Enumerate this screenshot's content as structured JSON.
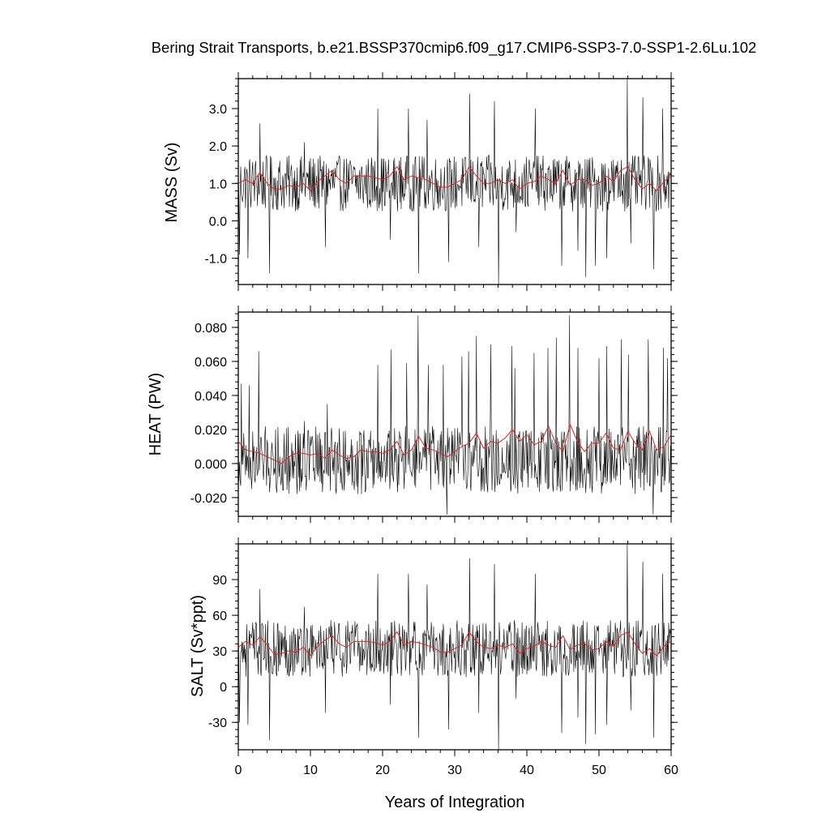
{
  "title": "Bering Strait Transports, b.e21.BSSP370cmip6.f09_g17.CMIP6-SSP3-7.0-SSP1-2.6Lu.102",
  "colors": {
    "monthly": "#000000",
    "annual": "#e8211c",
    "frame": "#000000"
  },
  "chart_data": [
    {
      "type": "line",
      "panel": "mass",
      "ylabel": "MASS (Sv)",
      "xlabel": "",
      "xlim": [
        0,
        60
      ],
      "ylim": [
        -1.7,
        3.8
      ],
      "yticks": [
        -1.0,
        0.0,
        1.0,
        2.0,
        3.0
      ],
      "ytick_labels": [
        "-1.0",
        "0.0",
        "1.0",
        "2.0",
        "3.0"
      ],
      "series": [
        {
          "values": [
            1.0,
            1.1,
            1.0,
            1.3,
            1.0,
            0.85,
            0.85,
            0.95,
            0.9,
            1.0,
            0.8,
            1.05,
            1.2,
            1.35,
            1.1,
            1.0,
            1.2,
            1.2,
            1.2,
            1.15,
            1.1,
            1.2,
            1.45,
            1.1,
            1.2,
            1.15,
            1.1,
            1.0,
            0.9,
            0.9,
            1.0,
            1.1,
            1.45,
            1.2,
            1.0,
            1.0,
            1.1,
            1.0,
            1.1,
            0.85,
            1.0,
            1.05,
            1.2,
            1.1,
            1.0,
            1.35,
            0.95,
            1.1,
            1.1,
            0.95,
            1.0,
            1.2,
            1.05,
            1.35,
            1.45,
            1.1,
            0.85,
            1.0,
            0.8,
            1.05,
            1.2
          ]
        },
        {
          "spikes": [
            [
              0.2,
              -0.9
            ],
            [
              1.3,
              -1.0
            ],
            [
              3.0,
              2.6
            ],
            [
              4.3,
              -1.4
            ],
            [
              9.2,
              2.1
            ],
            [
              12.1,
              -0.7
            ],
            [
              19.3,
              3.0
            ],
            [
              21.1,
              -0.5
            ],
            [
              23.6,
              3.0
            ],
            [
              25.0,
              -1.4
            ],
            [
              26.2,
              2.7
            ],
            [
              29.2,
              -1.1
            ],
            [
              32.1,
              3.4
            ],
            [
              33.3,
              -0.7
            ],
            [
              35.5,
              3.2
            ],
            [
              36.1,
              -1.8
            ],
            [
              38.5,
              -0.3
            ],
            [
              41.2,
              3.0
            ],
            [
              44.8,
              -1.2
            ],
            [
              47.1,
              -0.8
            ],
            [
              48.2,
              -1.5
            ],
            [
              49.5,
              -1.2
            ],
            [
              51.1,
              -1.0
            ],
            [
              53.9,
              3.8
            ],
            [
              54.4,
              -0.6
            ],
            [
              56.1,
              3.3
            ],
            [
              57.6,
              -1.3
            ],
            [
              58.8,
              3.0
            ]
          ],
          "baseline": 1.0,
          "amplitude": 0.75
        }
      ]
    },
    {
      "type": "line",
      "panel": "heat",
      "ylabel": "HEAT (PW)",
      "xlabel": "",
      "xlim": [
        0,
        60
      ],
      "ylim": [
        -0.031,
        0.089
      ],
      "yticks": [
        -0.02,
        0.0,
        0.02,
        0.04,
        0.06,
        0.08
      ],
      "ytick_labels": [
        "-0.020",
        "0.000",
        "0.020",
        "0.040",
        "0.060",
        "0.080"
      ],
      "series": [
        {
          "values": [
            0.013,
            0.008,
            0.007,
            0.006,
            0.004,
            0.002,
            0.0,
            0.004,
            0.006,
            0.006,
            0.005,
            0.006,
            0.003,
            0.008,
            0.005,
            0.003,
            0.004,
            0.008,
            0.007,
            0.007,
            0.006,
            0.008,
            0.013,
            0.005,
            0.008,
            0.016,
            0.009,
            0.008,
            0.006,
            0.004,
            0.007,
            0.01,
            0.012,
            0.018,
            0.009,
            0.013,
            0.012,
            0.015,
            0.02,
            0.013,
            0.017,
            0.011,
            0.013,
            0.022,
            0.012,
            0.007,
            0.023,
            0.013,
            0.007,
            0.012,
            0.012,
            0.018,
            0.009,
            0.008,
            0.019,
            0.012,
            0.008,
            0.019,
            0.008,
            0.01,
            0.017
          ]
        },
        {
          "spikes": [
            [
              0.4,
              0.047
            ],
            [
              1.5,
              0.046
            ],
            [
              2.8,
              0.066
            ],
            [
              5.2,
              0.02
            ],
            [
              9.2,
              0.025
            ],
            [
              12.3,
              0.035
            ],
            [
              19.3,
              0.058
            ],
            [
              21.2,
              0.067
            ],
            [
              23.3,
              0.059
            ],
            [
              24.9,
              0.087
            ],
            [
              26.3,
              0.058
            ],
            [
              28.4,
              0.058
            ],
            [
              28.9,
              -0.03
            ],
            [
              31.0,
              0.063
            ],
            [
              31.9,
              0.066
            ],
            [
              33.0,
              0.075
            ],
            [
              35.0,
              0.07
            ],
            [
              37.9,
              0.069
            ],
            [
              38.3,
              0.056
            ],
            [
              41.0,
              0.065
            ],
            [
              42.9,
              0.068
            ],
            [
              44.1,
              0.074
            ],
            [
              45.9,
              0.087
            ],
            [
              47.1,
              0.068
            ],
            [
              50.0,
              0.062
            ],
            [
              51.1,
              0.069
            ],
            [
              53.1,
              0.073
            ],
            [
              54.1,
              0.064
            ],
            [
              56.8,
              0.073
            ],
            [
              57.5,
              -0.03
            ],
            [
              58.9,
              0.068
            ],
            [
              59.5,
              0.062
            ]
          ],
          "baseline": 0.002,
          "amplitude": 0.02
        }
      ]
    },
    {
      "type": "line",
      "panel": "salt",
      "ylabel": "SALT (Sv*ppt)",
      "xlabel": "Years of Integration",
      "xlim": [
        0,
        60
      ],
      "ylim": [
        -53,
        120
      ],
      "xticks": [
        0,
        10,
        20,
        30,
        40,
        50,
        60
      ],
      "xtick_labels": [
        "0",
        "10",
        "20",
        "30",
        "40",
        "50",
        "60"
      ],
      "yticks": [
        -30,
        0,
        30,
        60,
        90
      ],
      "ytick_labels": [
        "-30",
        "0",
        "30",
        "60",
        "90"
      ],
      "series": [
        {
          "values": [
            33,
            38,
            35,
            42,
            35,
            27,
            28,
            30,
            29,
            33,
            26,
            34,
            39,
            43,
            36,
            33,
            38,
            38,
            38,
            37,
            35,
            38,
            46,
            35,
            38,
            37,
            35,
            33,
            29,
            29,
            32,
            35,
            46,
            38,
            33,
            32,
            35,
            33,
            36,
            28,
            32,
            34,
            38,
            35,
            33,
            43,
            31,
            35,
            36,
            31,
            32,
            38,
            34,
            43,
            46,
            36,
            28,
            32,
            26,
            34,
            38
          ]
        },
        {
          "spikes": [
            [
              0.2,
              -30
            ],
            [
              1.3,
              -32
            ],
            [
              3.0,
              82
            ],
            [
              4.3,
              -45
            ],
            [
              9.2,
              67
            ],
            [
              12.1,
              -22
            ],
            [
              19.3,
              95
            ],
            [
              21.1,
              -15
            ],
            [
              23.6,
              95
            ],
            [
              25.0,
              -43
            ],
            [
              26.2,
              86
            ],
            [
              29.2,
              -36
            ],
            [
              32.1,
              108
            ],
            [
              33.3,
              -22
            ],
            [
              35.5,
              103
            ],
            [
              36.1,
              -53
            ],
            [
              38.5,
              -10
            ],
            [
              41.2,
              95
            ],
            [
              44.8,
              -39
            ],
            [
              47.1,
              -26
            ],
            [
              48.2,
              -48
            ],
            [
              49.5,
              -40
            ],
            [
              51.1,
              -32
            ],
            [
              53.9,
              120
            ],
            [
              54.4,
              -20
            ],
            [
              56.1,
              105
            ],
            [
              57.6,
              -43
            ],
            [
              58.8,
              95
            ]
          ],
          "baseline": 32,
          "amplitude": 24
        }
      ]
    }
  ]
}
